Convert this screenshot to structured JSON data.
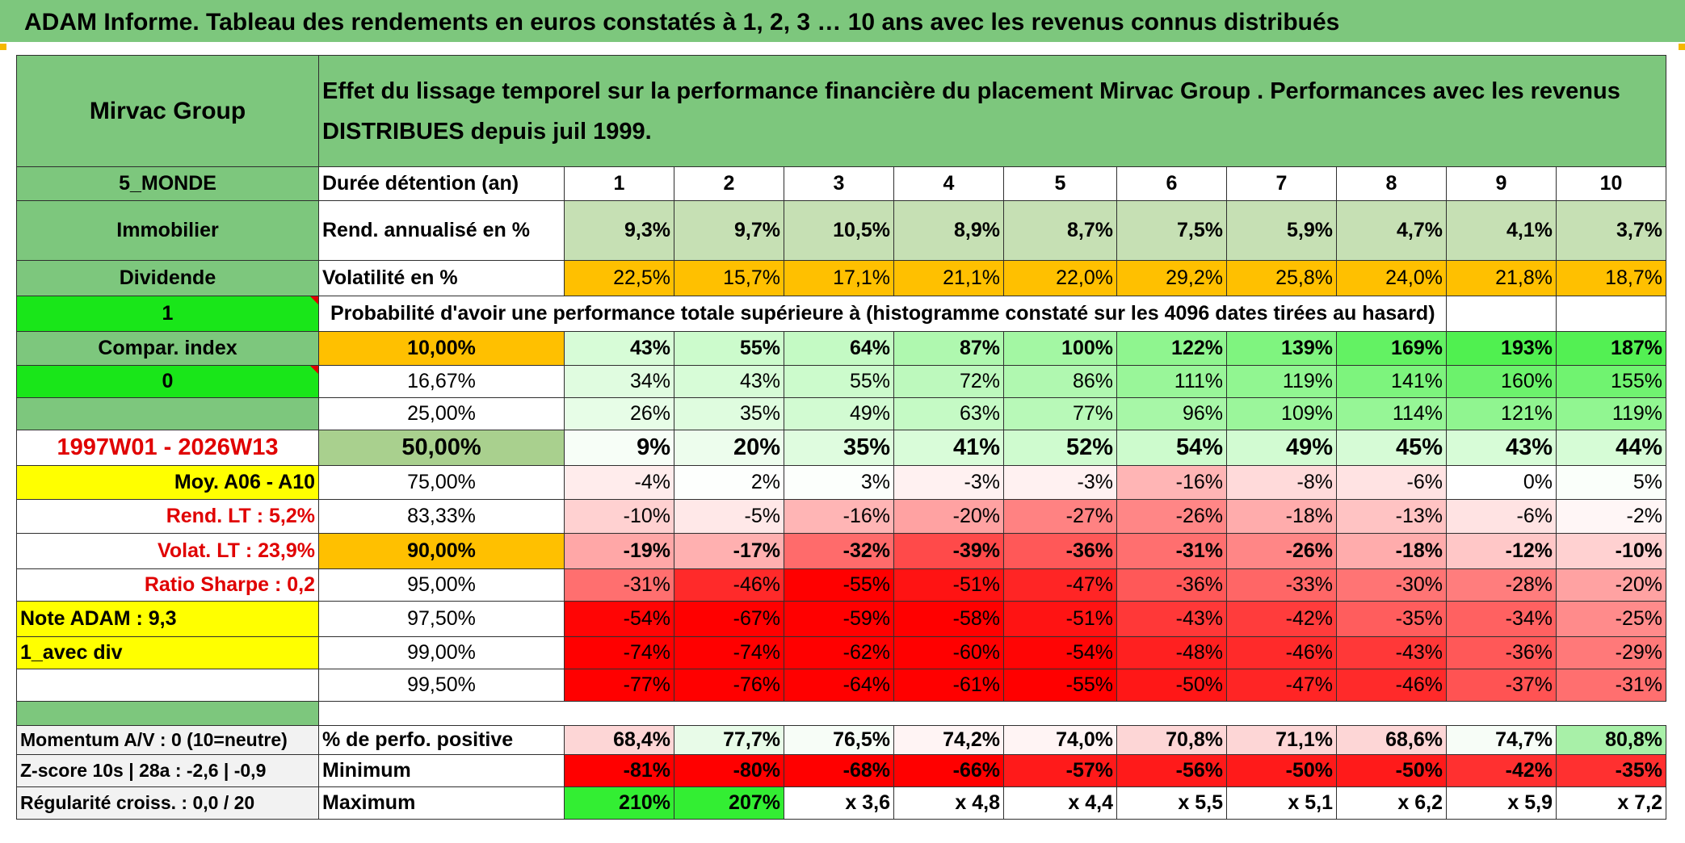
{
  "title": "ADAM Informe. Tableau des rendements en euros constatés à 1, 2, 3 … 10 ans avec les revenus connus distribués",
  "header": {
    "fund_name": "Mirvac Group",
    "description": "Effet du lissage temporel sur la performance financière du placement Mirvac Group . Performances avec les revenus DISTRIBUES depuis juil 1999."
  },
  "left_panel": {
    "zone": "5_MONDE",
    "sector": "Immobilier",
    "type": "Dividende",
    "toggle1": "1",
    "compar_index": "Compar. index",
    "toggle2": "0",
    "blank": "",
    "period": "1997W01 - 2026W13",
    "moy": "Moy. A06 - A10",
    "rend_lt": "Rend. LT :   5,2%",
    "volat_lt": "Volat. LT :   23,9%",
    "sharpe": "Ratio Sharpe :    0,2",
    "note": "Note ADAM : 9,3",
    "avec_div": "1_avec div"
  },
  "durations_label": "Durée détention (an)",
  "durations": [
    "1",
    "2",
    "3",
    "4",
    "5",
    "6",
    "7",
    "8",
    "9",
    "10"
  ],
  "rend_label": "Rend. annualisé en %",
  "rend_values": [
    "9,3%",
    "9,7%",
    "10,5%",
    "8,9%",
    "8,7%",
    "7,5%",
    "5,9%",
    "4,7%",
    "4,1%",
    "3,7%"
  ],
  "vol_label": "Volatilité en %",
  "vol_values": [
    "22,5%",
    "15,7%",
    "17,1%",
    "21,1%",
    "22,0%",
    "29,2%",
    "25,8%",
    "24,0%",
    "21,8%",
    "18,7%"
  ],
  "proba_text": "Probabilité d'avoir une performance totale supérieure à (histogramme constaté sur les 4096 dates tirées au hasard)",
  "quantiles": [
    {
      "p": "10,00%",
      "values": [
        "43%",
        "55%",
        "64%",
        "87%",
        "100%",
        "122%",
        "139%",
        "169%",
        "193%",
        "187%"
      ]
    },
    {
      "p": "16,67%",
      "values": [
        "34%",
        "43%",
        "55%",
        "72%",
        "86%",
        "111%",
        "119%",
        "141%",
        "160%",
        "155%"
      ]
    },
    {
      "p": "25,00%",
      "values": [
        "26%",
        "35%",
        "49%",
        "63%",
        "77%",
        "96%",
        "109%",
        "114%",
        "121%",
        "119%"
      ]
    },
    {
      "p": "50,00%",
      "values": [
        "9%",
        "20%",
        "35%",
        "41%",
        "52%",
        "54%",
        "49%",
        "45%",
        "43%",
        "44%"
      ]
    },
    {
      "p": "75,00%",
      "values": [
        "-4%",
        "2%",
        "3%",
        "-3%",
        "-3%",
        "-16%",
        "-8%",
        "-6%",
        "0%",
        "5%"
      ]
    },
    {
      "p": "83,33%",
      "values": [
        "-10%",
        "-5%",
        "-16%",
        "-20%",
        "-27%",
        "-26%",
        "-18%",
        "-13%",
        "-6%",
        "-2%"
      ]
    },
    {
      "p": "90,00%",
      "values": [
        "-19%",
        "-17%",
        "-32%",
        "-39%",
        "-36%",
        "-31%",
        "-26%",
        "-18%",
        "-12%",
        "-10%"
      ]
    },
    {
      "p": "95,00%",
      "values": [
        "-31%",
        "-46%",
        "-55%",
        "-51%",
        "-47%",
        "-36%",
        "-33%",
        "-30%",
        "-28%",
        "-20%"
      ]
    },
    {
      "p": "97,50%",
      "values": [
        "-54%",
        "-67%",
        "-59%",
        "-58%",
        "-51%",
        "-43%",
        "-42%",
        "-35%",
        "-34%",
        "-25%"
      ]
    },
    {
      "p": "99,00%",
      "values": [
        "-74%",
        "-74%",
        "-62%",
        "-60%",
        "-54%",
        "-48%",
        "-46%",
        "-43%",
        "-36%",
        "-29%"
      ]
    },
    {
      "p": "99,50%",
      "values": [
        "-77%",
        "-76%",
        "-64%",
        "-61%",
        "-55%",
        "-50%",
        "-47%",
        "-46%",
        "-37%",
        "-31%"
      ]
    }
  ],
  "bottom": {
    "momentum": "Momentum A/V : 0 (10=neutre)",
    "zscore": "Z-score 10s | 28a : -2,6 | -0,9",
    "regularite": "Régularité croiss. : 0,0 / 20",
    "pos_label": "% de perfo. positive",
    "pos_values": [
      "68,4%",
      "77,7%",
      "76,5%",
      "74,2%",
      "74,0%",
      "70,8%",
      "71,1%",
      "68,6%",
      "74,7%",
      "80,8%"
    ],
    "min_label": "Minimum",
    "min_values": [
      "-81%",
      "-80%",
      "-68%",
      "-66%",
      "-57%",
      "-56%",
      "-50%",
      "-50%",
      "-42%",
      "-35%"
    ],
    "max_label": "Maximum",
    "max_values": [
      "210%",
      "207%",
      "x 3,6",
      "x 4,8",
      "x 4,4",
      "x 5,5",
      "x 5,1",
      "x 6,2",
      "x 5,9",
      "x 7,2"
    ]
  },
  "colors": {
    "header_green": "#7dc77d",
    "bright_green": "#19e619",
    "yellow": "#ffff00",
    "orange": "#ffc000",
    "sage": "#a9d08e",
    "label_red": "#e00000"
  }
}
